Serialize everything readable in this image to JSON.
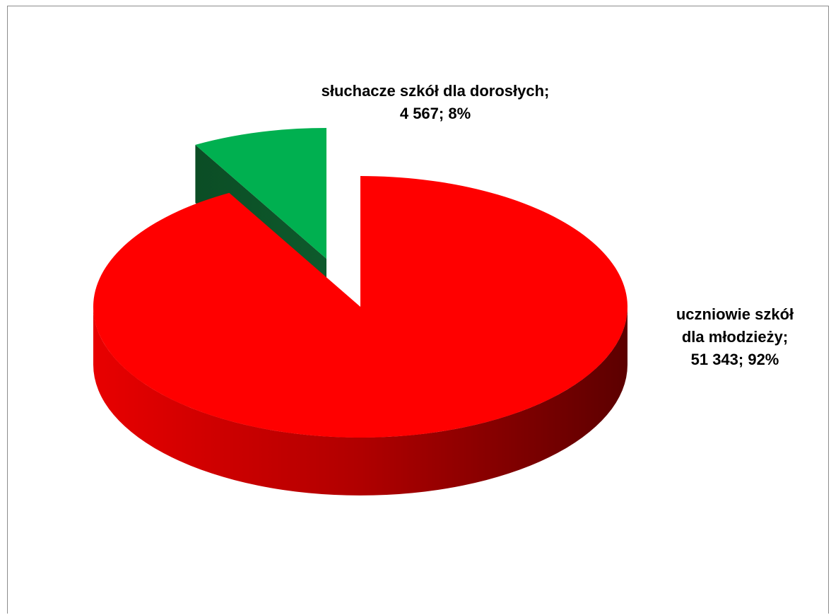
{
  "chart_data": {
    "type": "pie",
    "style": "3d-exploded",
    "categories": [
      "uczniowie szkół dla młodzieży",
      "słuchacze szkół dla dorosłych"
    ],
    "values": [
      51343,
      4567
    ],
    "percentages": [
      92,
      8
    ],
    "colors": [
      "#ff0000",
      "#00b050"
    ],
    "data_labels": [
      {
        "lines": [
          "uczniowie szkół",
          "dla młodzieży;",
          "51 343; 92%"
        ]
      },
      {
        "lines": [
          "słuchacze szkół dla dorosłych;",
          "4 567; 8%"
        ]
      }
    ],
    "legend": "none"
  }
}
